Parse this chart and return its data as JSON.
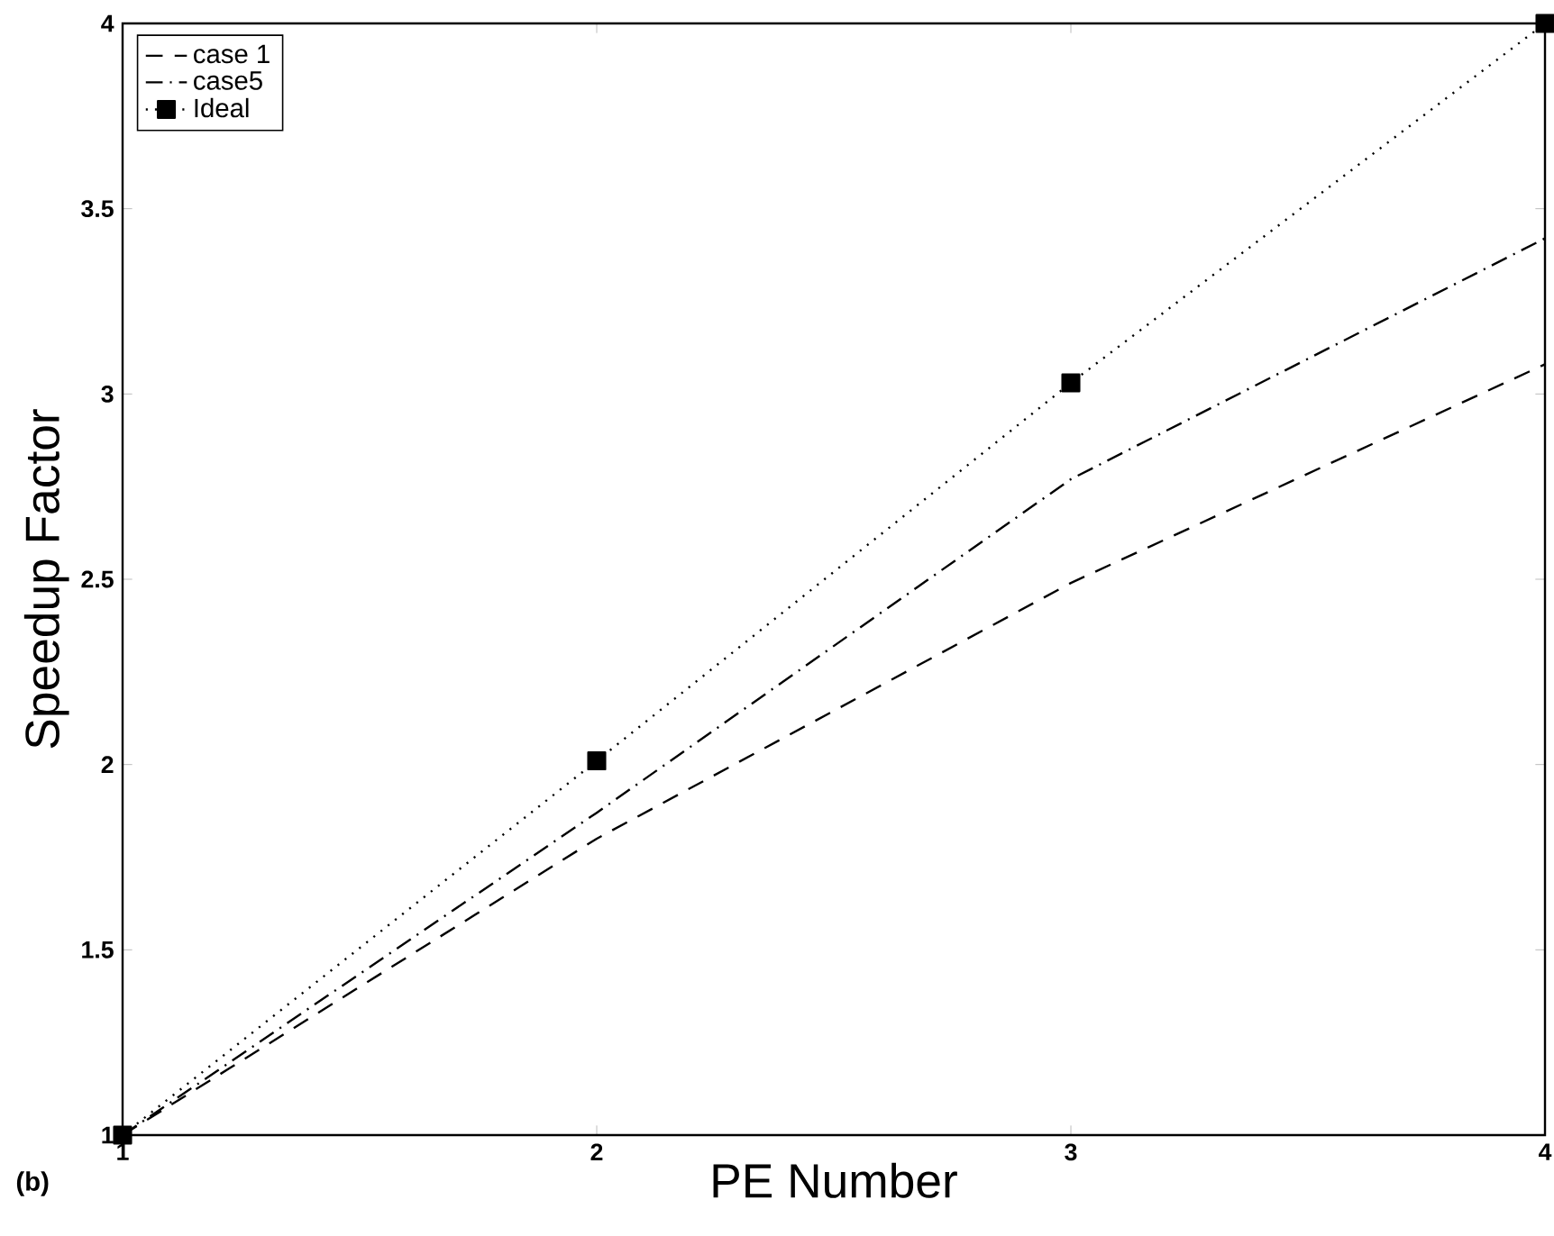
{
  "chart_data": {
    "type": "line",
    "xlabel": "PE Number",
    "ylabel": "Speedup Factor",
    "annotations": [
      "(b)"
    ],
    "x": [
      1,
      2,
      3,
      4
    ],
    "series": [
      {
        "name": "case 1",
        "color": "#000000",
        "line_style": "dashed",
        "marker": "none",
        "values": [
          1,
          1.8,
          2.49,
          3.08
        ]
      },
      {
        "name": "case5",
        "color": "#000000",
        "line_style": "dashdot",
        "marker": "none",
        "values": [
          1,
          1.87,
          2.77,
          3.42
        ]
      },
      {
        "name": "Ideal",
        "color": "#000000",
        "line_style": "dotted",
        "marker": "square",
        "values": [
          1,
          2.01,
          3.03,
          4
        ]
      }
    ],
    "xlim": [
      1,
      4
    ],
    "ylim": [
      1,
      4
    ],
    "xticks": [
      1,
      2,
      3,
      4
    ],
    "yticks": [
      1,
      1.5,
      2,
      2.5,
      3,
      3.5,
      4
    ],
    "legend": "top left"
  }
}
